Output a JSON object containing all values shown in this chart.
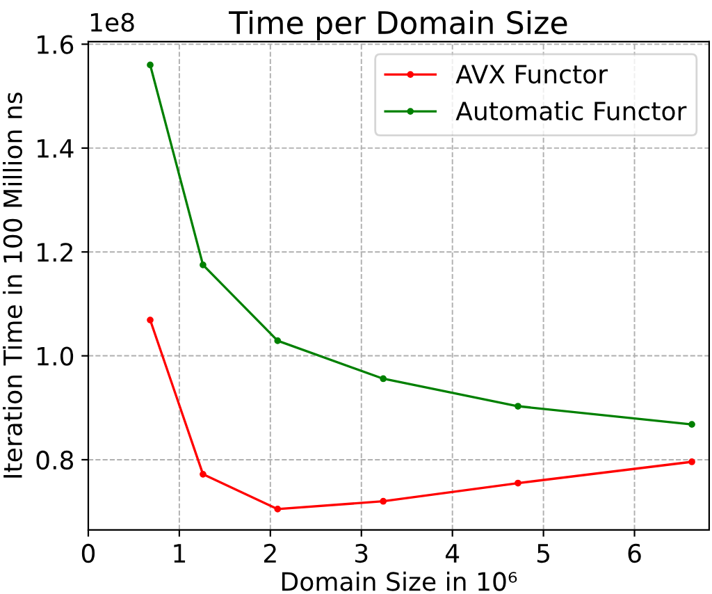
{
  "chart_data": {
    "type": "line",
    "title": "Time per Domain Size",
    "xlabel": "Domain Size in 10⁶",
    "ylabel": "Iteration Time in 100 Million ns",
    "annotations": [
      "1e8"
    ],
    "series": [
      {
        "name": "AVX Functor",
        "color": "#ff0000",
        "x": [
          0.68,
          1.26,
          2.08,
          3.24,
          4.72,
          6.63
        ],
        "values": [
          1.069,
          0.772,
          0.705,
          0.72,
          0.755,
          0.796
        ]
      },
      {
        "name": "Automatic Functor",
        "color": "#008000",
        "x": [
          0.68,
          1.26,
          2.08,
          3.24,
          4.72,
          6.63
        ],
        "values": [
          1.56,
          1.175,
          1.029,
          0.956,
          0.903,
          0.868
        ]
      }
    ],
    "xlim": [
      0,
      6.82
    ],
    "ylim": [
      0.665,
      1.605
    ],
    "xticks": [
      0,
      1,
      2,
      3,
      4,
      5,
      6
    ],
    "yticks": [
      {
        "value": 0.8,
        "label": "0.8"
      },
      {
        "value": 1.0,
        "label": "1.0"
      },
      {
        "value": 1.2,
        "label": "1.2"
      },
      {
        "value": 1.4,
        "label": "1.4"
      },
      {
        "value": 1.6,
        "label": "1.6"
      }
    ],
    "grid": true,
    "legend": "top right",
    "marker": "circle",
    "line_style": "solid"
  }
}
